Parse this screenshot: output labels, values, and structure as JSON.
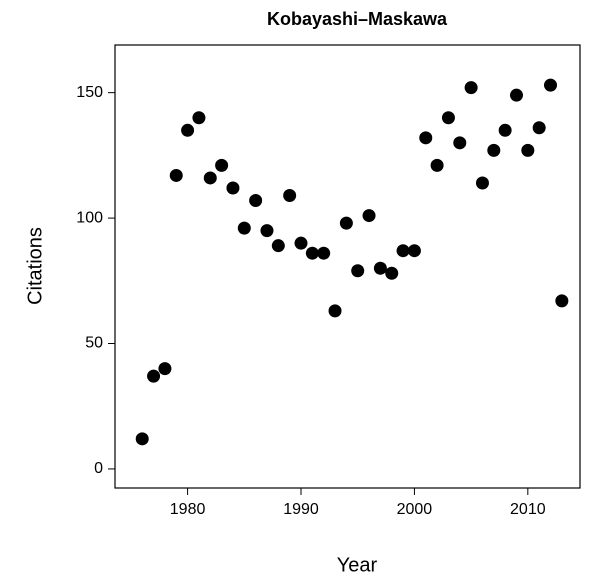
{
  "chart_data": {
    "type": "scatter",
    "title": "Kobayashi–Maskawa",
    "xlabel": "Year",
    "ylabel": "Citations",
    "x": [
      1976,
      1977,
      1978,
      1979,
      1980,
      1981,
      1982,
      1983,
      1984,
      1985,
      1986,
      1987,
      1988,
      1989,
      1990,
      1991,
      1992,
      1993,
      1994,
      1995,
      1996,
      1997,
      1998,
      1999,
      2000,
      2001,
      2002,
      2003,
      2004,
      2005,
      2006,
      2007,
      2008,
      2009,
      2010,
      2011,
      2012,
      2013
    ],
    "values": [
      12,
      37,
      40,
      117,
      135,
      140,
      116,
      121,
      112,
      96,
      107,
      95,
      89,
      109,
      90,
      86,
      86,
      63,
      98,
      79,
      101,
      80,
      78,
      87,
      87,
      132,
      121,
      140,
      130,
      152,
      114,
      127,
      135,
      149,
      127,
      136,
      153,
      67
    ],
    "color": "#000000",
    "xlim": [
      1973.6,
      2014.6
    ],
    "xticks": [
      1980,
      1990,
      2000,
      2010
    ],
    "ylim": [
      -7.6,
      169
    ],
    "yticks": [
      0,
      50,
      100,
      150
    ]
  }
}
